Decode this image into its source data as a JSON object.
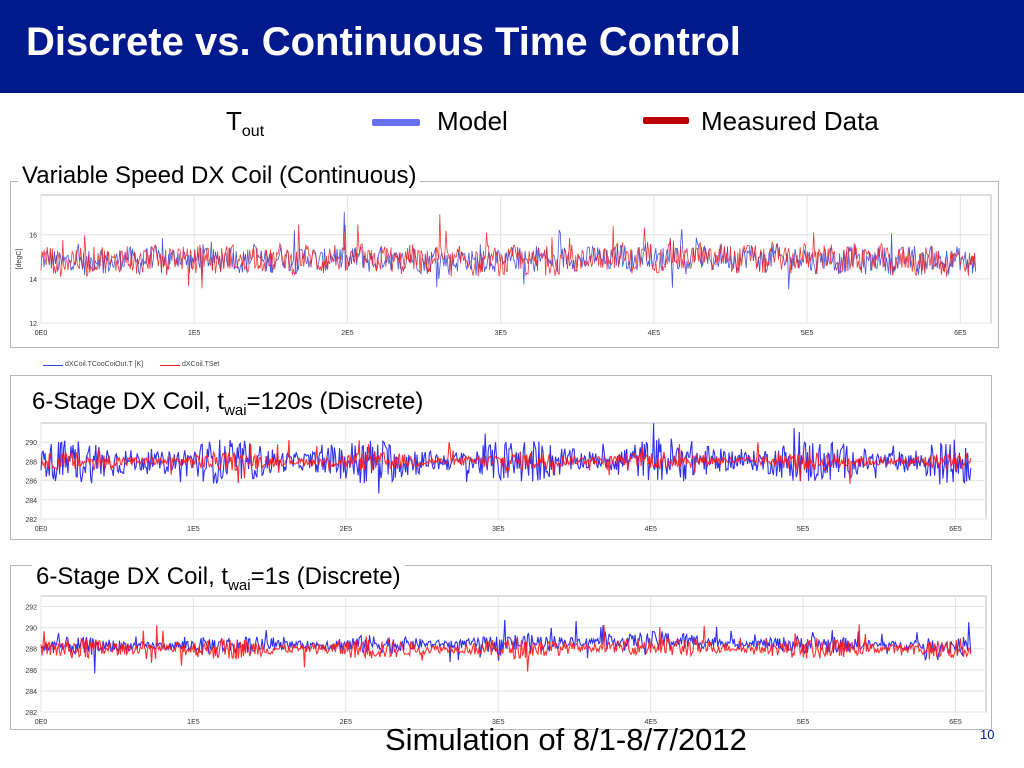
{
  "slide": {
    "title": "Discrete vs. Continuous Time Control",
    "legend": {
      "tout_main": "T",
      "tout_sub": "out",
      "model_label": "Model",
      "measured_label": "Measured Data",
      "model_color": "#6670f5",
      "measured_color": "#c00000"
    },
    "footer": "Simulation of 8/1-8/7/2012",
    "page_number": "10"
  },
  "chart_data": [
    {
      "type": "line",
      "caption": "Variable Speed DX Coil (Continuous)",
      "ylabel": "[degC]",
      "ylim": [
        12,
        17.8
      ],
      "xlim": [
        0,
        6.2
      ],
      "yticks": [
        "12",
        "14",
        "16"
      ],
      "ytick_values": [
        12,
        14,
        16
      ],
      "xticks": [
        "0E0",
        "1E5",
        "2E5",
        "3E5",
        "4E5",
        "5E5",
        "6E5"
      ],
      "xtick_values": [
        0,
        1,
        2,
        3,
        4,
        5,
        6
      ],
      "grid": true,
      "legend_entries": [
        "dXCoil.TCooCoiOut.T [K]",
        "dXCoil.TSet"
      ],
      "series": [
        {
          "name": "dXCoil.TCooCoiOut.T [K]",
          "color": "#3344dd",
          "style": "continuous-blue",
          "x_units": "1E5 s",
          "x": [
            0,
            1,
            2,
            3,
            4,
            5,
            6,
            6.1
          ],
          "values": [
            14.8,
            14.9,
            14.9,
            14.8,
            15.0,
            14.9,
            14.8,
            14.8
          ]
        },
        {
          "name": "dXCoil.TSet",
          "color": "#ee2222",
          "style": "continuous-red",
          "x_units": "1E5 s",
          "x": [
            0,
            1,
            2,
            3,
            4,
            5,
            6,
            6.1
          ],
          "values": [
            14.8,
            14.9,
            14.9,
            14.8,
            15.0,
            14.9,
            14.8,
            14.8
          ]
        }
      ]
    },
    {
      "type": "line",
      "caption_main": "6-Stage DX Coil, t",
      "caption_sub": "wai",
      "caption_tail": "=120s (Discrete)",
      "ylim": [
        282,
        292
      ],
      "xlim": [
        0,
        6.2
      ],
      "yticks": [
        "282",
        "284",
        "286",
        "288",
        "290"
      ],
      "ytick_values": [
        282,
        284,
        286,
        288,
        290
      ],
      "xticks": [
        "0E0",
        "1E5",
        "2E5",
        "3E5",
        "4E5",
        "5E5",
        "6E5"
      ],
      "xtick_values": [
        0,
        1,
        2,
        3,
        4,
        5,
        6
      ],
      "grid": true,
      "series": [
        {
          "name": "dXCoil.TCooCoiOut.T [K]",
          "color": "#1a1aee",
          "style": "wide-blue",
          "x": [
            0,
            1,
            2,
            3,
            4,
            5,
            6,
            6.1
          ],
          "values": [
            288,
            288,
            288,
            288,
            288.2,
            288,
            288,
            288
          ]
        },
        {
          "name": "dXCoil.TSet",
          "color": "#ff1a1a",
          "style": "narrow-red",
          "x": [
            0,
            1,
            2,
            3,
            4,
            5,
            6,
            6.1
          ],
          "values": [
            288,
            288,
            288,
            288,
            288.2,
            288,
            288,
            288
          ]
        }
      ]
    },
    {
      "type": "line",
      "caption_main": "6-Stage DX Coil, t",
      "caption_sub": "wai",
      "caption_tail": "=1s (Discrete)",
      "ylim": [
        282,
        293
      ],
      "xlim": [
        0,
        6.2
      ],
      "yticks": [
        "282",
        "284",
        "286",
        "288",
        "290",
        "292"
      ],
      "ytick_values": [
        282,
        284,
        286,
        288,
        290,
        292
      ],
      "xticks": [
        "0E0",
        "1E5",
        "2E5",
        "3E5",
        "4E5",
        "5E5",
        "6E5"
      ],
      "xtick_values": [
        0,
        1,
        2,
        3,
        4,
        5,
        6
      ],
      "grid": true,
      "series": [
        {
          "name": "dXCoil.TCooCoiOut.T [K]",
          "color": "#1a1aee",
          "style": "narrow-blue",
          "x": [
            0,
            1,
            2,
            3,
            4,
            5,
            6,
            6.1
          ],
          "values": [
            288.2,
            288.3,
            288.4,
            288.5,
            288.8,
            288.4,
            288.3,
            288.2
          ]
        },
        {
          "name": "dXCoil.TSet",
          "color": "#ff1a1a",
          "style": "narrow-red",
          "x": [
            0,
            1,
            2,
            3,
            4,
            5,
            6,
            6.1
          ],
          "values": [
            288,
            288,
            288,
            288,
            288.2,
            288,
            288,
            288
          ]
        }
      ]
    }
  ]
}
